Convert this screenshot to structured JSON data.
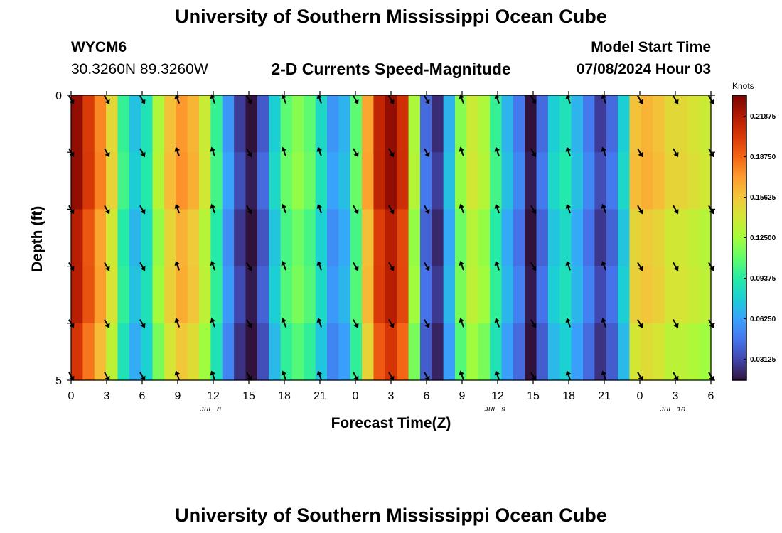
{
  "header": {
    "title": "University of Southern Mississippi Ocean Cube",
    "station_id": "WYCM6",
    "coordinates": "30.3260N  89.3260W",
    "subtitle": "2-D Currents Speed-Magnitude",
    "model_start_label": "Model Start Time",
    "model_start_value": "07/08/2024 Hour 03"
  },
  "footer": {
    "title": "University of Southern Mississippi Ocean Cube"
  },
  "colors": {
    "colormap": [
      "#30123b",
      "#4145ab",
      "#4675ed",
      "#39a2fc",
      "#1bcfd4",
      "#24eca6",
      "#61fc6c",
      "#a4fc3b",
      "#d1e834",
      "#f3c63a",
      "#fe9b2d",
      "#f36315",
      "#d93807",
      "#b11901",
      "#7a0403"
    ],
    "arrow": "#000000",
    "background": "#ffffff"
  },
  "chart_data": {
    "type": "heatmap",
    "title": "2-D Currents Speed-Magnitude",
    "xlabel": "Forecast Time(Z)",
    "ylabel": "Depth (ft)",
    "x_tick_labels": [
      "0",
      "3",
      "6",
      "9",
      "12",
      "15",
      "18",
      "21",
      "0",
      "3",
      "6",
      "9",
      "12",
      "15",
      "18",
      "21",
      "0",
      "3",
      "6"
    ],
    "x_hours": [
      0,
      3,
      6,
      9,
      12,
      15,
      18,
      21,
      24,
      27,
      30,
      33,
      36,
      39,
      42,
      45,
      48,
      51,
      54
    ],
    "day_labels": [
      {
        "label": "JUL 8",
        "hour": 12
      },
      {
        "label": "JUL 9",
        "hour": 36
      },
      {
        "label": "JUL 10",
        "hour": 51
      }
    ],
    "y_tick_labels": [
      "0",
      "5"
    ],
    "ylim": [
      0,
      5
    ],
    "xlim": [
      0,
      54
    ],
    "colorbar": {
      "unit_label": "Knots",
      "range": [
        0.015,
        0.235
      ],
      "tick_labels": [
        "0.21875",
        "0.18750",
        "0.15625",
        "0.12500",
        "0.09375",
        "0.06250",
        "0.03125"
      ],
      "tick_values": [
        0.21875,
        0.1875,
        0.15625,
        0.125,
        0.09375,
        0.0625,
        0.03125
      ]
    },
    "speed_profile": {
      "hours": [
        0,
        1,
        2,
        3,
        4,
        5,
        6,
        7,
        8,
        9,
        10,
        11,
        12,
        13,
        14,
        15,
        16,
        17,
        18,
        19,
        20,
        21,
        22,
        23,
        24,
        25,
        26,
        27,
        28,
        29,
        30,
        31,
        32,
        33,
        34,
        35,
        36,
        37,
        38,
        39,
        40,
        41,
        42,
        43,
        44,
        45,
        46,
        47,
        48,
        49,
        50,
        51,
        52,
        53,
        54
      ],
      "speed_knots": [
        0.23,
        0.205,
        0.18,
        0.15,
        0.1,
        0.075,
        0.09,
        0.13,
        0.16,
        0.175,
        0.165,
        0.14,
        0.1,
        0.06,
        0.03,
        0.015,
        0.04,
        0.08,
        0.11,
        0.12,
        0.11,
        0.085,
        0.06,
        0.07,
        0.11,
        0.17,
        0.215,
        0.23,
        0.21,
        0.13,
        0.045,
        0.025,
        0.07,
        0.12,
        0.14,
        0.13,
        0.1,
        0.07,
        0.05,
        0.015,
        0.045,
        0.08,
        0.09,
        0.07,
        0.05,
        0.03,
        0.045,
        0.08,
        0.16,
        0.165,
        0.16,
        0.15,
        0.15,
        0.145,
        0.14
      ]
    },
    "direction_vectors": {
      "hours": [
        0,
        3,
        6,
        9,
        12,
        15,
        18,
        21,
        24,
        27,
        30,
        33,
        36,
        39,
        42,
        45,
        48,
        51,
        54
      ],
      "depths_ft": [
        0,
        1,
        2,
        3,
        4,
        5
      ],
      "direction": [
        "ebb",
        "ebb",
        "ebb",
        "flood",
        "flood",
        "ebb",
        "flood",
        "flood",
        "ebb",
        "ebb",
        "ebb",
        "flood",
        "flood",
        "ebb",
        "flood",
        "flood",
        "ebb",
        "ebb",
        "ebb"
      ]
    }
  }
}
